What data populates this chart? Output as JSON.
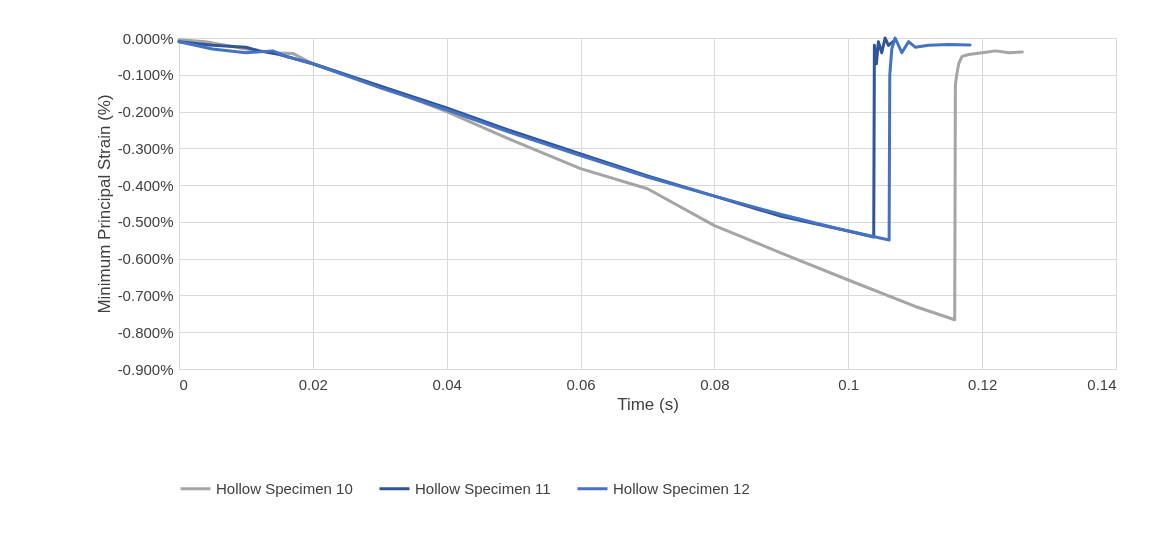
{
  "chart_data": {
    "type": "line",
    "xlabel": "Time (s)",
    "ylabel": "Minimum Principal Strain (%)",
    "xlim": [
      0,
      0.14
    ],
    "xticks": [
      0,
      0.02,
      0.04,
      0.06,
      0.08,
      0.1,
      0.12,
      0.14
    ],
    "ylim": [
      -0.9,
      0
    ],
    "yticks": [
      {
        "value": 0,
        "label": "0.000%"
      },
      {
        "value": -0.1,
        "label": "-0.100%"
      },
      {
        "value": -0.2,
        "label": "-0.200%"
      },
      {
        "value": -0.3,
        "label": "-0.300%"
      },
      {
        "value": -0.4,
        "label": "-0.400%"
      },
      {
        "value": -0.5,
        "label": "-0.500%"
      },
      {
        "value": -0.6,
        "label": "-0.600%"
      },
      {
        "value": -0.7,
        "label": "-0.700%"
      },
      {
        "value": -0.8,
        "label": "-0.800%"
      },
      {
        "value": -0.9,
        "label": "-0.900%"
      }
    ],
    "grid": true,
    "legend": "bottom",
    "marker": "none",
    "line_style": "solid",
    "series": [
      {
        "name": "Hollow Specimen 10",
        "color": "#a5a5a5",
        "x": [
          0,
          0.004,
          0.01,
          0.014,
          0.017,
          0.02,
          0.03,
          0.04,
          0.05,
          0.06,
          0.07,
          0.08,
          0.09,
          0.1,
          0.11,
          0.1159,
          0.116,
          0.1162,
          0.1165,
          0.117,
          0.118,
          0.12,
          0.122,
          0.124,
          0.126
        ],
        "values": [
          -0.005,
          -0.01,
          -0.03,
          -0.04,
          -0.042,
          -0.07,
          -0.13,
          -0.2,
          -0.28,
          -0.355,
          -0.41,
          -0.51,
          -0.585,
          -0.658,
          -0.73,
          -0.766,
          -0.128,
          -0.1,
          -0.07,
          -0.05,
          -0.045,
          -0.04,
          -0.035,
          -0.04,
          -0.038
        ]
      },
      {
        "name": "Hollow Specimen 11",
        "color": "#2f5597",
        "x": [
          0,
          0.005,
          0.01,
          0.012,
          0.015,
          0.02,
          0.03,
          0.04,
          0.05,
          0.06,
          0.07,
          0.08,
          0.09,
          0.1,
          0.1038,
          0.1039,
          0.1042,
          0.1045,
          0.105,
          0.1055,
          0.106,
          0.107
        ],
        "values": [
          -0.01,
          -0.02,
          -0.025,
          -0.035,
          -0.045,
          -0.07,
          -0.13,
          -0.19,
          -0.255,
          -0.315,
          -0.375,
          -0.43,
          -0.485,
          -0.525,
          -0.541,
          -0.02,
          -0.07,
          -0.01,
          -0.04,
          0,
          -0.02,
          -0.005
        ]
      },
      {
        "name": "Hollow Specimen 12",
        "color": "#4472c4",
        "x": [
          0,
          0.005,
          0.01,
          0.014,
          0.016,
          0.02,
          0.03,
          0.04,
          0.05,
          0.06,
          0.07,
          0.08,
          0.09,
          0.1,
          0.1061,
          0.1062,
          0.1065,
          0.107,
          0.108,
          0.109,
          0.11,
          0.112,
          0.115,
          0.1182
        ],
        "values": [
          -0.01,
          -0.03,
          -0.04,
          -0.035,
          -0.05,
          -0.07,
          -0.135,
          -0.195,
          -0.26,
          -0.32,
          -0.378,
          -0.43,
          -0.48,
          -0.525,
          -0.549,
          -0.1,
          -0.03,
          0,
          -0.04,
          -0.01,
          -0.025,
          -0.02,
          -0.018,
          -0.019
        ]
      }
    ]
  }
}
